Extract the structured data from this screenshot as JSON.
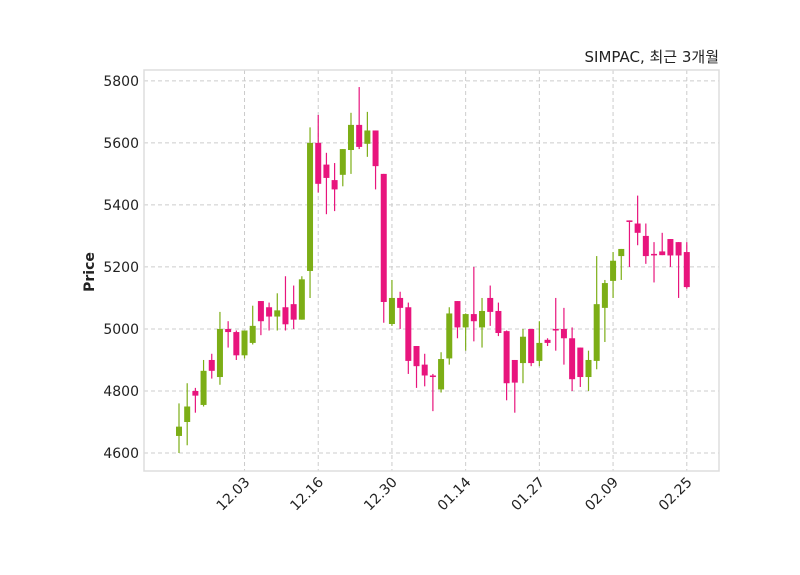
{
  "chart_data": {
    "type": "candlestick",
    "title": "SIMPAC, 최근 3개월",
    "xlabel": "",
    "ylabel": "Price",
    "ylim": [
      4542,
      5835
    ],
    "yticks": [
      4600,
      4800,
      5000,
      5200,
      5400,
      5600,
      5800
    ],
    "xtick_labels": [
      {
        "index": 8,
        "label": "12.03"
      },
      {
        "index": 17,
        "label": "12.16"
      },
      {
        "index": 26,
        "label": "12.30"
      },
      {
        "index": 35,
        "label": "01.14"
      },
      {
        "index": 44,
        "label": "01.27"
      },
      {
        "index": 53,
        "label": "02.09"
      },
      {
        "index": 62,
        "label": "02.25"
      }
    ],
    "grid": true,
    "colors": {
      "up": "#7cae16",
      "down": "#e8157d",
      "grid": "#cccccc",
      "frame": "#dddddd"
    },
    "ohlc": [
      [
        4655,
        4760,
        4600,
        4685
      ],
      [
        4700,
        4825,
        4625,
        4750
      ],
      [
        4800,
        4810,
        4730,
        4785
      ],
      [
        4755,
        4900,
        4750,
        4865
      ],
      [
        4900,
        4920,
        4840,
        4865
      ],
      [
        4845,
        5055,
        4820,
        5000
      ],
      [
        5000,
        5025,
        4940,
        4990
      ],
      [
        4990,
        4995,
        4900,
        4915
      ],
      [
        4915,
        4995,
        4905,
        4995
      ],
      [
        4955,
        5075,
        4950,
        5010
      ],
      [
        5090,
        5090,
        4980,
        5025
      ],
      [
        5070,
        5085,
        4995,
        5040
      ],
      [
        5040,
        5115,
        4995,
        5060
      ],
      [
        5070,
        5170,
        4995,
        5015
      ],
      [
        5080,
        5140,
        5000,
        5030
      ],
      [
        5030,
        5170,
        5030,
        5160
      ],
      [
        5187,
        5650,
        5100,
        5600
      ],
      [
        5600,
        5690,
        5440,
        5468
      ],
      [
        5530,
        5568,
        5370,
        5487
      ],
      [
        5480,
        5535,
        5380,
        5450
      ],
      [
        5497,
        5580,
        5460,
        5580
      ],
      [
        5577,
        5697,
        5500,
        5658
      ],
      [
        5658,
        5780,
        5580,
        5587
      ],
      [
        5597,
        5700,
        5555,
        5640
      ],
      [
        5640,
        5640,
        5450,
        5525
      ],
      [
        5500,
        5500,
        5020,
        5087
      ],
      [
        5016,
        5158,
        5010,
        5100
      ],
      [
        5100,
        5120,
        5000,
        5068
      ],
      [
        5070,
        5085,
        4855,
        4897
      ],
      [
        4945,
        4945,
        4810,
        4880
      ],
      [
        4885,
        4920,
        4815,
        4850
      ],
      [
        4850,
        4855,
        4735,
        4845
      ],
      [
        4805,
        4925,
        4795,
        4903
      ],
      [
        4905,
        5070,
        4885,
        5050
      ],
      [
        5090,
        5090,
        4970,
        5005
      ],
      [
        5005,
        5050,
        4930,
        5048
      ],
      [
        5048,
        5200,
        4960,
        5025
      ],
      [
        5005,
        5100,
        4940,
        5058
      ],
      [
        5100,
        5140,
        5010,
        5055
      ],
      [
        5058,
        5085,
        4977,
        4987
      ],
      [
        4993,
        4995,
        4770,
        4825
      ],
      [
        4900,
        4900,
        4730,
        4827
      ],
      [
        4890,
        5000,
        4825,
        4975
      ],
      [
        5000,
        5000,
        4880,
        4890
      ],
      [
        4897,
        5025,
        4880,
        4955
      ],
      [
        4965,
        4970,
        4945,
        4955
      ],
      [
        5000,
        5100,
        4930,
        4995
      ],
      [
        5000,
        5068,
        4885,
        4970
      ],
      [
        4970,
        5005,
        4800,
        4838
      ],
      [
        4940,
        4940,
        4813,
        4845
      ],
      [
        4845,
        4930,
        4800,
        4900
      ],
      [
        4897,
        5235,
        4870,
        5080
      ],
      [
        5068,
        5158,
        4958,
        5148
      ],
      [
        5155,
        5248,
        5100,
        5220
      ],
      [
        5235,
        5258,
        5158,
        5258
      ],
      [
        5350,
        5350,
        5200,
        5345
      ],
      [
        5340,
        5430,
        5270,
        5310
      ],
      [
        5300,
        5340,
        5210,
        5235
      ],
      [
        5242,
        5280,
        5150,
        5238
      ],
      [
        5250,
        5310,
        5238,
        5238
      ],
      [
        5290,
        5290,
        5200,
        5237
      ],
      [
        5280,
        5280,
        5100,
        5237
      ],
      [
        5248,
        5280,
        5130,
        5135
      ]
    ]
  }
}
